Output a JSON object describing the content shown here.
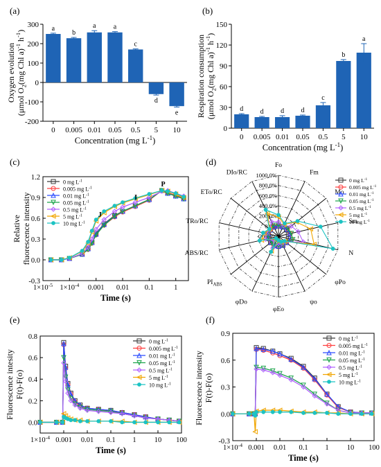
{
  "colors": {
    "bar": "#1f64b5",
    "series": [
      "#3a3a3a",
      "#ff3d3d",
      "#2a4bff",
      "#1aa34a",
      "#b060ff",
      "#f0a500",
      "#1cc3c3"
    ]
  },
  "chart_data": [
    {
      "panel": "(a)",
      "type": "bar",
      "categories": [
        "0",
        "0.005",
        "0.01",
        "0.05",
        "0.5",
        "5",
        "10"
      ],
      "values": [
        250,
        228,
        258,
        258,
        170,
        -60,
        -122
      ],
      "errors": [
        4,
        4,
        9,
        4,
        3,
        5,
        5
      ],
      "letters": [
        "a",
        "b",
        "a",
        "a",
        "c",
        "d",
        "e"
      ],
      "xlabel": "Concentration (mg L-1)",
      "ylabel": "Oxygen evolution (μmol O2(mg Chl a)-1 h-1)",
      "ylim": [
        -200,
        300
      ],
      "yticks": [
        -200,
        -100,
        0,
        100,
        200,
        300
      ]
    },
    {
      "panel": "(b)",
      "type": "bar",
      "categories": [
        "0",
        "0.005",
        "0.01",
        "0.05",
        "0.5",
        "5",
        "10"
      ],
      "values": [
        20,
        16,
        16,
        18,
        33,
        97,
        109
      ],
      "errors": [
        1,
        1,
        2,
        1,
        4,
        2,
        13
      ],
      "letters": [
        "d",
        "d",
        "d",
        "d",
        "c",
        "b",
        "a"
      ],
      "xlabel": "Concentration (mg L-1)",
      "ylabel": "Respiration consumption (μmol O2(mg Chl a)-1 h-1)",
      "ylim": [
        0,
        150
      ],
      "yticks": [
        0,
        30,
        60,
        90,
        120,
        150
      ]
    },
    {
      "panel": "(c)",
      "type": "line",
      "xscale": "log",
      "xlabel": "Time (s)",
      "ylabel": "Relative fluorescence intensity",
      "xlim": [
        1e-05,
        3
      ],
      "xticks": [
        1e-05,
        0.0001,
        0.001,
        0.01,
        0.1,
        1
      ],
      "xtick_labels": [
        "1×10-5",
        "1×10-4",
        "0.001",
        "0.01",
        "0.1",
        "1"
      ],
      "ylim": [
        -0.3,
        1.2
      ],
      "yticks": [
        -0.3,
        0.0,
        0.3,
        0.6,
        0.9,
        1.2
      ],
      "ytick_labels": [
        "-0.3",
        "0.0",
        "0.3",
        "0.6",
        "0.9",
        "1.2"
      ],
      "annotations": [
        "J",
        "I",
        "P"
      ],
      "x": [
        2e-05,
        5e-05,
        0.0001,
        0.0003,
        0.0005,
        0.0007,
        0.001,
        0.002,
        0.005,
        0.01,
        0.03,
        0.1,
        0.3,
        0.5,
        1,
        2
      ],
      "series": [
        {
          "name": "0 mg L-1",
          "values": [
            0.0,
            0.0,
            0.02,
            0.08,
            0.16,
            0.25,
            0.38,
            0.52,
            0.64,
            0.7,
            0.78,
            0.87,
            1.0,
            0.96,
            0.92,
            0.88
          ]
        },
        {
          "name": "0.005 mg L-1",
          "values": [
            0.0,
            0.0,
            0.02,
            0.08,
            0.15,
            0.24,
            0.36,
            0.5,
            0.62,
            0.69,
            0.77,
            0.86,
            1.0,
            0.97,
            0.93,
            0.89
          ]
        },
        {
          "name": "0.01 mg L-1",
          "values": [
            0.0,
            0.0,
            0.02,
            0.08,
            0.16,
            0.25,
            0.37,
            0.51,
            0.63,
            0.7,
            0.78,
            0.87,
            1.0,
            0.96,
            0.92,
            0.88
          ]
        },
        {
          "name": "0.05 mg L-1",
          "values": [
            0.0,
            0.0,
            0.02,
            0.08,
            0.15,
            0.24,
            0.36,
            0.5,
            0.63,
            0.7,
            0.78,
            0.87,
            1.0,
            0.96,
            0.92,
            0.88
          ]
        },
        {
          "name": "0.5 mg L-1",
          "values": [
            0.0,
            0.0,
            0.02,
            0.09,
            0.18,
            0.3,
            0.44,
            0.58,
            0.7,
            0.76,
            0.83,
            0.9,
            0.99,
            1.0,
            0.96,
            0.92
          ]
        },
        {
          "name": "5 mg L-1",
          "values": [
            0.0,
            0.0,
            0.03,
            0.12,
            0.24,
            0.4,
            0.56,
            0.68,
            0.77,
            0.82,
            0.88,
            0.94,
            1.0,
            0.99,
            0.95,
            0.9
          ]
        },
        {
          "name": "10 mg L-1",
          "values": [
            0.0,
            0.0,
            0.03,
            0.13,
            0.26,
            0.42,
            0.58,
            0.7,
            0.78,
            0.83,
            0.89,
            0.95,
            1.0,
            0.99,
            0.96,
            0.91
          ]
        }
      ]
    },
    {
      "panel": "(d)",
      "type": "radar",
      "axes": [
        "Fo",
        "Fm",
        "Mo",
        "Sm",
        "N",
        "φPo",
        "ψo",
        "φEo",
        "φDo",
        "PIABS",
        "ABS/RC",
        "TRo/RC",
        "ETo/RC",
        "DIo/RC"
      ],
      "ring_labels": [
        "-200.0%",
        "0.0%",
        "200.0%",
        "400.0%",
        "600.0%",
        "800.0%",
        "1000.0%"
      ],
      "range": [
        -200,
        1000
      ],
      "series": [
        {
          "name": "0 mg L-1",
          "values": [
            0,
            0,
            0,
            0,
            0,
            0,
            0,
            0,
            0,
            0,
            0,
            0,
            0,
            0
          ]
        },
        {
          "name": "0.005 mg L-1",
          "values": [
            10,
            5,
            30,
            40,
            60,
            0,
            -10,
            -10,
            10,
            -20,
            10,
            10,
            0,
            20
          ]
        },
        {
          "name": "0.01 mg L-1",
          "values": [
            5,
            5,
            20,
            30,
            40,
            0,
            -5,
            -5,
            5,
            -10,
            5,
            5,
            0,
            10
          ]
        },
        {
          "name": "0.05 mg L-1",
          "values": [
            20,
            10,
            40,
            60,
            90,
            -5,
            -15,
            -20,
            20,
            -30,
            20,
            15,
            5,
            40
          ]
        },
        {
          "name": "0.5 mg L-1",
          "values": [
            80,
            30,
            120,
            200,
            300,
            -20,
            -40,
            -60,
            60,
            -80,
            60,
            40,
            10,
            120
          ]
        },
        {
          "name": "5 mg L-1",
          "values": [
            180,
            60,
            250,
            450,
            520,
            -40,
            -70,
            -100,
            120,
            -120,
            140,
            90,
            20,
            300
          ]
        },
        {
          "name": "10 mg L-1",
          "values": [
            220,
            80,
            280,
            650,
            900,
            -50,
            -80,
            -120,
            140,
            -140,
            180,
            110,
            30,
            380
          ]
        }
      ]
    },
    {
      "panel": "(e)",
      "type": "line",
      "xscale": "log",
      "xlabel": "Time (s)",
      "ylabel": "Fluorescence intesity F(t)-F(o)",
      "xlim": [
        0.0001,
        100
      ],
      "xticks": [
        0.0001,
        0.001,
        0.01,
        0.1,
        1,
        10,
        100
      ],
      "xtick_labels": [
        "1×10-4",
        "0.001",
        "0.01",
        "0.1",
        "1",
        "10",
        "100"
      ],
      "ylim": [
        -0.1,
        0.8
      ],
      "yticks": [
        0.0,
        0.2,
        0.4,
        0.6,
        0.8
      ],
      "ytick_labels": [
        "0.0",
        "0.2",
        "0.4",
        "0.6",
        "0.8"
      ],
      "x": [
        0.0001,
        0.0005,
        0.0009,
        0.001,
        0.0012,
        0.0015,
        0.002,
        0.003,
        0.005,
        0.01,
        0.03,
        0.1,
        0.3,
        1,
        3,
        10,
        30,
        80
      ],
      "series": [
        {
          "name": "0 mg L-1",
          "values": [
            0,
            0,
            0,
            0.74,
            0.52,
            0.36,
            0.27,
            0.2,
            0.16,
            0.13,
            0.12,
            0.11,
            0.09,
            0.07,
            0.05,
            0.03,
            0.02,
            0.01
          ]
        },
        {
          "name": "0.005 mg L-1",
          "values": [
            0,
            0,
            0,
            0.72,
            0.5,
            0.35,
            0.26,
            0.19,
            0.15,
            0.13,
            0.12,
            0.1,
            0.09,
            0.07,
            0.05,
            0.03,
            0.02,
            0.01
          ]
        },
        {
          "name": "0.01 mg L-1",
          "values": [
            0,
            0,
            0,
            0.73,
            0.51,
            0.35,
            0.26,
            0.2,
            0.16,
            0.13,
            0.12,
            0.11,
            0.09,
            0.07,
            0.05,
            0.03,
            0.02,
            0.01
          ]
        },
        {
          "name": "0.05 mg L-1",
          "values": [
            0,
            0,
            0,
            0.6,
            0.42,
            0.3,
            0.22,
            0.17,
            0.14,
            0.12,
            0.11,
            0.1,
            0.08,
            0.06,
            0.04,
            0.03,
            0.02,
            0.01
          ]
        },
        {
          "name": "0.5 mg L-1",
          "values": [
            0,
            0,
            0,
            0.55,
            0.38,
            0.27,
            0.2,
            0.16,
            0.13,
            0.11,
            0.1,
            0.09,
            0.08,
            0.06,
            0.04,
            0.03,
            0.02,
            0.01
          ]
        },
        {
          "name": "5 mg L-1",
          "values": [
            0,
            0,
            0,
            0.08,
            0.06,
            0.04,
            0.03,
            0.02,
            0.02,
            0.01,
            0.01,
            0.01,
            0.01,
            0.0,
            0.0,
            0.0,
            0.0,
            0.0
          ]
        },
        {
          "name": "10 mg L-1",
          "values": [
            0,
            0,
            0,
            0.05,
            0.04,
            0.03,
            0.02,
            0.02,
            0.01,
            0.01,
            0.01,
            0.01,
            0.0,
            0.0,
            0.0,
            0.0,
            0.0,
            0.0
          ]
        }
      ]
    },
    {
      "panel": "(f)",
      "type": "line",
      "xscale": "log",
      "xlabel": "Time (s)",
      "ylabel": "Fluorescence intensity F(t)-F(o)",
      "xlim": [
        0.0001,
        100
      ],
      "xticks": [
        0.0001,
        0.001,
        0.01,
        0.1,
        1,
        10,
        100
      ],
      "xtick_labels": [
        "1×10-4",
        "0.001",
        "0.01",
        "0.1",
        "1",
        "10",
        "100"
      ],
      "ylim": [
        -0.3,
        0.9
      ],
      "yticks": [
        -0.3,
        0.0,
        0.3,
        0.6,
        0.9
      ],
      "ytick_labels": [
        "-0.3",
        "0.0",
        "0.3",
        "0.6",
        "0.9"
      ],
      "x": [
        0.0001,
        0.0005,
        0.0008,
        0.0009,
        0.001,
        0.002,
        0.005,
        0.01,
        0.03,
        0.1,
        0.3,
        1,
        3,
        10,
        30,
        80
      ],
      "series": [
        {
          "name": "0 mg L-1",
          "values": [
            0,
            0,
            0,
            0,
            0.74,
            0.73,
            0.7,
            0.67,
            0.62,
            0.53,
            0.4,
            0.22,
            0.08,
            0.02,
            0.01,
            0.01
          ]
        },
        {
          "name": "0.005 mg L-1",
          "values": [
            0,
            0,
            0,
            0,
            0.72,
            0.71,
            0.68,
            0.65,
            0.6,
            0.51,
            0.38,
            0.21,
            0.07,
            0.02,
            0.01,
            0.01
          ]
        },
        {
          "name": "0.01 mg L-1",
          "values": [
            0,
            0,
            0,
            0,
            0.73,
            0.72,
            0.7,
            0.67,
            0.61,
            0.52,
            0.39,
            0.22,
            0.08,
            0.02,
            0.01,
            0.01
          ]
        },
        {
          "name": "0.05 mg L-1",
          "values": [
            0,
            0,
            0,
            0,
            0.52,
            0.51,
            0.48,
            0.45,
            0.4,
            0.32,
            0.22,
            0.12,
            0.04,
            0.01,
            0.01,
            0.01
          ]
        },
        {
          "name": "0.5 mg L-1",
          "values": [
            0,
            0,
            0,
            0,
            0.5,
            0.49,
            0.46,
            0.43,
            0.38,
            0.3,
            0.2,
            0.11,
            0.04,
            0.01,
            0.01,
            0.01
          ]
        },
        {
          "name": "5 mg L-1",
          "values": [
            0,
            0,
            0,
            -0.2,
            0.03,
            0.04,
            0.04,
            0.04,
            0.03,
            0.02,
            0.02,
            0.01,
            0.01,
            0.0,
            0.0,
            0.0
          ]
        },
        {
          "name": "10 mg L-1",
          "values": [
            0,
            0,
            0,
            -0.02,
            0.02,
            0.02,
            0.02,
            0.02,
            0.02,
            0.01,
            0.01,
            0.01,
            0.0,
            0.0,
            0.0,
            0.0
          ]
        }
      ]
    }
  ]
}
